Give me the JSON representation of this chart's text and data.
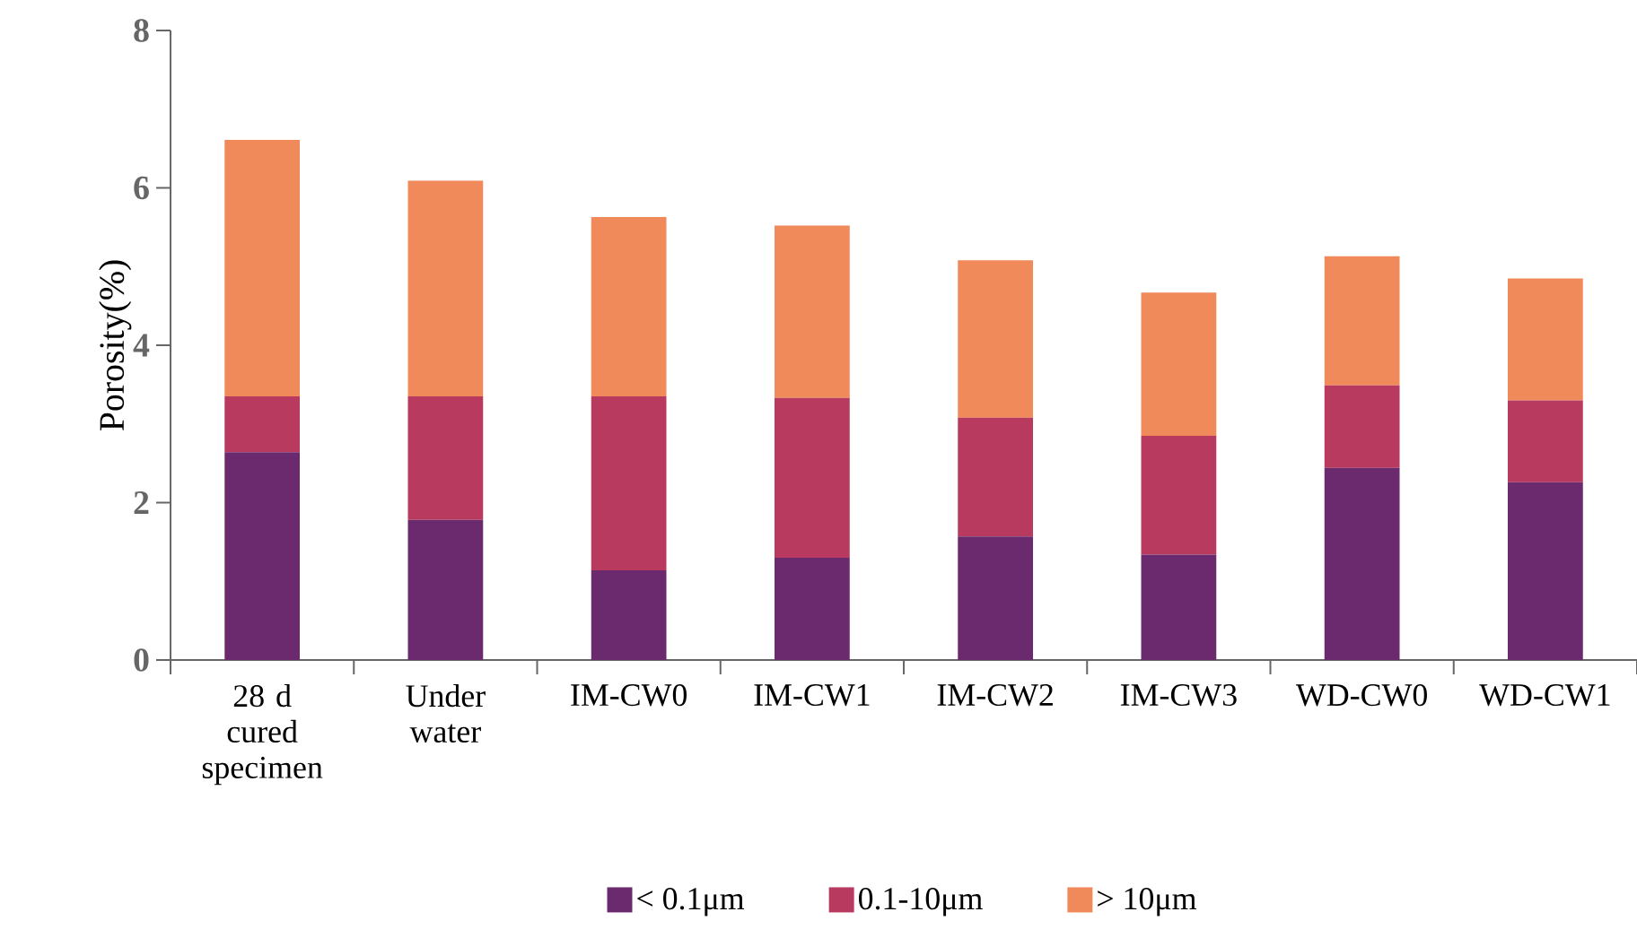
{
  "chart_data": {
    "type": "bar",
    "stacked": true,
    "ylabel": "Porosity(%)",
    "categories": [
      "28 d cured specimen",
      "Under water",
      "IM-CW0",
      "IM-CW1",
      "IM-CW2",
      "IM-CW3",
      "WD-CW0",
      "WD-CW1"
    ],
    "series": [
      {
        "name": "< 0.1μm",
        "color": "#6b2a6e",
        "values": [
          2.64,
          1.78,
          1.14,
          1.3,
          1.57,
          1.34,
          2.44,
          2.26
        ]
      },
      {
        "name": "0.1-10μm",
        "color": "#b83a5e",
        "values": [
          0.71,
          1.57,
          2.21,
          2.03,
          1.51,
          1.51,
          1.05,
          1.04
        ]
      },
      {
        "name": "> 10μm",
        "color": "#f08a5a",
        "values": [
          3.26,
          2.74,
          2.28,
          2.19,
          2.0,
          1.82,
          1.64,
          1.55
        ]
      }
    ],
    "ylim": [
      0,
      8
    ],
    "yticks": [
      0,
      2,
      4,
      6,
      8
    ],
    "legend": "bottom"
  }
}
